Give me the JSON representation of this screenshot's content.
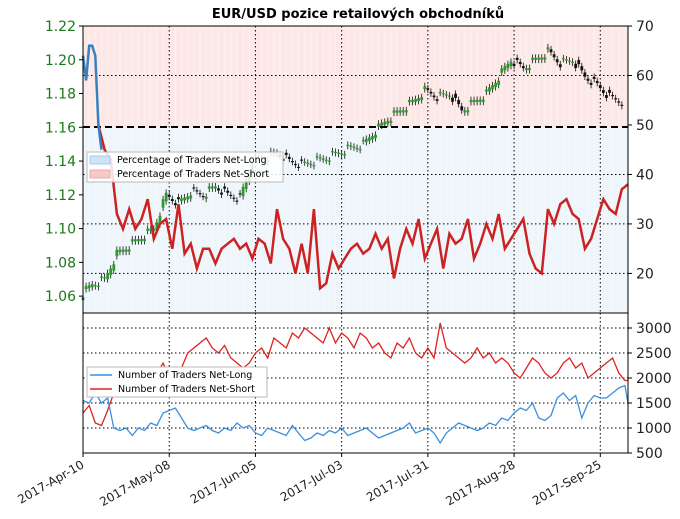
{
  "chart_data": [
    {
      "type": "line",
      "title": "EUR/USD pozice retailových obchodníků",
      "left_axis": {
        "ylim": [
          1.05,
          1.22
        ],
        "ticks": [
          "1.06",
          "1.08",
          "1.10",
          "1.12",
          "1.14",
          "1.16",
          "1.18",
          "1.20",
          "1.22"
        ]
      },
      "right_axis": {
        "ylim": [
          12,
          70
        ],
        "ticks": [
          "20",
          "30",
          "40",
          "50",
          "60",
          "70"
        ]
      },
      "x_ticks": [
        "2017-Apr-10",
        "2017-May-08",
        "2017-Jun-05",
        "2017-Jul-03",
        "2017-Jul-31",
        "2017-Aug-28",
        "2017-Sep-25"
      ],
      "reference_line": 50,
      "grid": true,
      "legend": {
        "placement": "middle-left",
        "entries": [
          "Percentage of Traders Net-Long",
          "Percentage of Traders Net-Short"
        ]
      },
      "series": [
        {
          "name": "Percentage of Traders Net-Long",
          "color": "#3a7fbf",
          "x": [
            0,
            1,
            2,
            3,
            4,
            5,
            6
          ],
          "values": [
            64,
            59,
            66,
            66,
            64,
            50,
            45
          ]
        },
        {
          "name": "Percentage of Traders Net-Short",
          "color": "#cc2222",
          "x": [
            5,
            7,
            9,
            11,
            13,
            15,
            17,
            19,
            21,
            23,
            25,
            27,
            29,
            31,
            33,
            35,
            37,
            39,
            41,
            43,
            45,
            47,
            49,
            51,
            53,
            55,
            57,
            59,
            61,
            63,
            65,
            67,
            69,
            71,
            73,
            75,
            77,
            79,
            81,
            83,
            85,
            87,
            89,
            91,
            93,
            95,
            97,
            99,
            101,
            103,
            105,
            107,
            109,
            111,
            113,
            115,
            117,
            119,
            121,
            123,
            125,
            127,
            129,
            131,
            133,
            135,
            137,
            139,
            141,
            143,
            145,
            147,
            149,
            151,
            153,
            155,
            157,
            159,
            161,
            163,
            165,
            167,
            169,
            171,
            173,
            175,
            177
          ],
          "values": [
            50,
            45,
            43,
            32,
            29,
            33,
            29,
            31,
            35,
            27,
            30,
            31,
            25,
            34,
            24,
            26,
            21,
            25,
            25,
            22,
            25,
            26,
            27,
            25,
            26,
            23,
            27,
            26,
            22,
            33,
            27,
            25,
            20,
            26,
            20,
            33,
            17,
            18,
            24,
            21,
            23,
            25,
            26,
            24,
            25,
            28,
            25,
            27,
            19,
            25,
            29,
            26,
            31,
            23,
            26,
            29,
            21,
            28,
            26,
            27,
            31,
            23,
            26,
            30,
            27,
            32,
            25,
            27,
            29,
            31,
            24,
            21,
            20,
            33,
            30,
            34,
            35,
            32,
            31,
            25,
            27,
            31,
            35,
            33,
            32,
            37,
            38
          ]
        },
        {
          "name": "EUR/USD",
          "color": "#1a8a1a",
          "x": [
            0,
            4,
            8,
            12,
            16,
            20,
            24,
            28,
            32,
            36,
            40,
            44,
            48,
            52,
            56,
            60,
            64,
            68,
            72,
            76,
            80,
            84,
            88,
            92,
            96,
            100,
            104,
            108,
            112,
            116,
            120,
            124,
            128,
            132,
            136,
            140,
            144,
            148,
            152,
            156,
            160,
            164,
            168,
            172,
            176
          ],
          "values": [
            1.06,
            1.067,
            1.07,
            1.085,
            1.09,
            1.095,
            1.1,
            1.12,
            1.115,
            1.122,
            1.12,
            1.125,
            1.12,
            1.118,
            1.14,
            1.142,
            1.145,
            1.14,
            1.138,
            1.14,
            1.142,
            1.145,
            1.148,
            1.15,
            1.158,
            1.165,
            1.17,
            1.175,
            1.182,
            1.178,
            1.18,
            1.17,
            1.175,
            1.18,
            1.19,
            1.2,
            1.195,
            1.2,
            1.205,
            1.198,
            1.2,
            1.19,
            1.185,
            1.178,
            1.175
          ]
        }
      ]
    },
    {
      "type": "line",
      "ylim": [
        500,
        3300
      ],
      "ticks": [
        "500",
        "1000",
        "1500",
        "2000",
        "2500",
        "3000"
      ],
      "grid": true,
      "legend": {
        "placement": "left",
        "entries": [
          "Number of Traders Net-Long",
          "Number of Traders Net-Short"
        ]
      },
      "series": [
        {
          "name": "Number of Traders Net-Long",
          "color": "#3a8fe0",
          "x": [
            0,
            2,
            4,
            6,
            8,
            10,
            12,
            14,
            16,
            18,
            20,
            22,
            24,
            26,
            28,
            30,
            32,
            34,
            36,
            38,
            40,
            42,
            44,
            46,
            48,
            50,
            52,
            54,
            56,
            58,
            60,
            62,
            64,
            66,
            68,
            70,
            72,
            74,
            76,
            78,
            80,
            82,
            84,
            86,
            88,
            90,
            92,
            94,
            96,
            98,
            100,
            102,
            104,
            106,
            108,
            110,
            112,
            114,
            116,
            118,
            120,
            122,
            124,
            126,
            128,
            130,
            132,
            134,
            136,
            138,
            140,
            142,
            144,
            146,
            148,
            150,
            152,
            154,
            156,
            158,
            160,
            162,
            164,
            166,
            168,
            170,
            172,
            174,
            176,
            177
          ],
          "values": [
            1550,
            1500,
            1700,
            1500,
            1600,
            1000,
            950,
            1000,
            850,
            1000,
            950,
            1100,
            1050,
            1300,
            1350,
            1400,
            1200,
            1000,
            950,
            1000,
            1050,
            950,
            900,
            1000,
            950,
            1100,
            1000,
            1050,
            900,
            850,
            1000,
            950,
            900,
            850,
            1050,
            900,
            750,
            800,
            900,
            850,
            950,
            900,
            1000,
            850,
            900,
            950,
            1000,
            900,
            800,
            850,
            900,
            950,
            1000,
            1100,
            900,
            950,
            1000,
            900,
            700,
            900,
            1000,
            1100,
            1050,
            1000,
            950,
            1000,
            1100,
            1050,
            1200,
            1150,
            1300,
            1400,
            1350,
            1500,
            1200,
            1150,
            1250,
            1600,
            1700,
            1550,
            1650,
            1200,
            1500,
            1650,
            1600,
            1600,
            1700,
            1800,
            1850,
            1500
          ]
        },
        {
          "name": "Number of Traders Net-Short",
          "color": "#dd2222",
          "x": [
            0,
            2,
            4,
            6,
            8,
            10,
            12,
            14,
            16,
            18,
            20,
            22,
            24,
            26,
            28,
            30,
            32,
            34,
            36,
            38,
            40,
            42,
            44,
            46,
            48,
            50,
            52,
            54,
            56,
            58,
            60,
            62,
            64,
            66,
            68,
            70,
            72,
            74,
            76,
            78,
            80,
            82,
            84,
            86,
            88,
            90,
            92,
            94,
            96,
            98,
            100,
            102,
            104,
            106,
            108,
            110,
            112,
            114,
            116,
            118,
            120,
            122,
            124,
            126,
            128,
            130,
            132,
            134,
            136,
            138,
            140,
            142,
            144,
            146,
            148,
            150,
            152,
            154,
            156,
            158,
            160,
            162,
            164,
            166,
            168,
            170,
            172,
            174,
            176,
            177
          ],
          "values": [
            1300,
            1450,
            1100,
            1050,
            1350,
            1700,
            1750,
            2000,
            2100,
            2200,
            1900,
            2000,
            2100,
            2300,
            2000,
            1800,
            2200,
            2500,
            2600,
            2700,
            2800,
            2600,
            2500,
            2650,
            2400,
            2300,
            2200,
            2300,
            2500,
            2600,
            2400,
            2800,
            2700,
            2600,
            2900,
            2800,
            3000,
            2900,
            2800,
            2700,
            3000,
            2700,
            2900,
            2800,
            2600,
            2900,
            2800,
            2600,
            2700,
            2500,
            2400,
            2700,
            2600,
            2800,
            2500,
            2400,
            2600,
            2400,
            3100,
            2600,
            2500,
            2400,
            2300,
            2400,
            2600,
            2400,
            2500,
            2300,
            2400,
            2300,
            2100,
            2000,
            2200,
            2400,
            2300,
            2100,
            2000,
            2100,
            2300,
            2400,
            2200,
            2300,
            2000,
            2100,
            2200,
            2300,
            2400,
            2100,
            1950,
            1950
          ]
        }
      ]
    }
  ]
}
